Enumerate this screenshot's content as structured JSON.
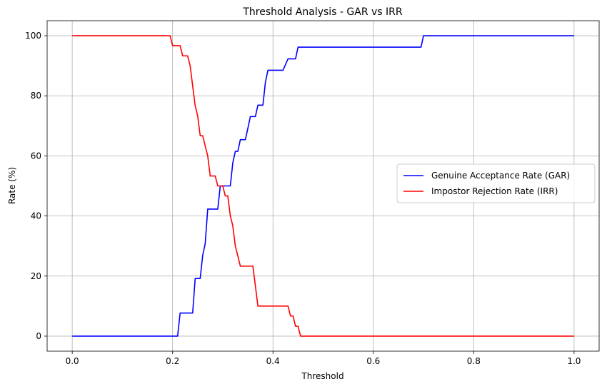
{
  "chart_data": {
    "type": "line",
    "title": "Threshold Analysis - GAR vs IRR",
    "xlabel": "Threshold",
    "ylabel": "Rate (%)",
    "xlim": [
      -0.05,
      1.05
    ],
    "ylim": [
      -5,
      105
    ],
    "xticks": [
      0.0,
      0.2,
      0.4,
      0.6,
      0.8,
      1.0
    ],
    "xtick_labels": [
      "0.0",
      "0.2",
      "0.4",
      "0.6",
      "0.8",
      "1.0"
    ],
    "yticks": [
      0,
      20,
      40,
      60,
      80,
      100
    ],
    "ytick_labels": [
      "0",
      "20",
      "40",
      "60",
      "80",
      "100"
    ],
    "grid": true,
    "legend_position": "center-right",
    "series": [
      {
        "name": "Genuine Acceptance Rate (GAR)",
        "color": "#0000ff",
        "x": [
          0.0,
          0.21,
          0.215,
          0.24,
          0.245,
          0.255,
          0.26,
          0.265,
          0.27,
          0.275,
          0.29,
          0.295,
          0.3,
          0.315,
          0.32,
          0.325,
          0.33,
          0.335,
          0.34,
          0.345,
          0.35,
          0.355,
          0.36,
          0.365,
          0.37,
          0.375,
          0.38,
          0.385,
          0.39,
          0.395,
          0.4,
          0.41,
          0.42,
          0.43,
          0.435,
          0.44,
          0.445,
          0.45,
          0.69,
          0.695,
          0.7,
          1.0
        ],
        "y": [
          0,
          0,
          7.7,
          7.7,
          19.2,
          19.2,
          26.9,
          30.8,
          42.3,
          42.3,
          42.3,
          50,
          50,
          50,
          57.7,
          61.5,
          61.5,
          65.4,
          65.4,
          65.4,
          69.2,
          73.1,
          73.1,
          73.1,
          76.9,
          76.9,
          76.9,
          84.6,
          88.5,
          88.5,
          88.5,
          88.5,
          88.5,
          92.3,
          92.3,
          92.3,
          92.3,
          96.2,
          96.2,
          96.2,
          100,
          100
        ]
      },
      {
        "name": "Impostor Rejection Rate (IRR)",
        "color": "#ff0000",
        "x": [
          0.0,
          0.195,
          0.2,
          0.21,
          0.215,
          0.22,
          0.23,
          0.235,
          0.24,
          0.245,
          0.25,
          0.255,
          0.26,
          0.265,
          0.27,
          0.275,
          0.28,
          0.285,
          0.29,
          0.295,
          0.3,
          0.305,
          0.31,
          0.315,
          0.32,
          0.325,
          0.33,
          0.335,
          0.34,
          0.345,
          0.35,
          0.355,
          0.36,
          0.365,
          0.37,
          0.375,
          0.38,
          0.43,
          0.435,
          0.44,
          0.445,
          0.45,
          0.455,
          0.46,
          1.0
        ],
        "y": [
          100,
          100,
          96.7,
          96.7,
          96.7,
          93.3,
          93.3,
          90,
          83.3,
          76.7,
          73.3,
          66.7,
          66.7,
          63.3,
          60,
          53.3,
          53.3,
          53.3,
          50,
          50,
          50,
          46.7,
          46.7,
          40,
          36.7,
          30,
          26.7,
          23.3,
          23.3,
          23.3,
          23.3,
          23.3,
          23.3,
          16.7,
          10,
          10,
          10,
          10,
          6.7,
          6.7,
          3.3,
          3.3,
          0,
          0,
          0
        ]
      }
    ]
  }
}
